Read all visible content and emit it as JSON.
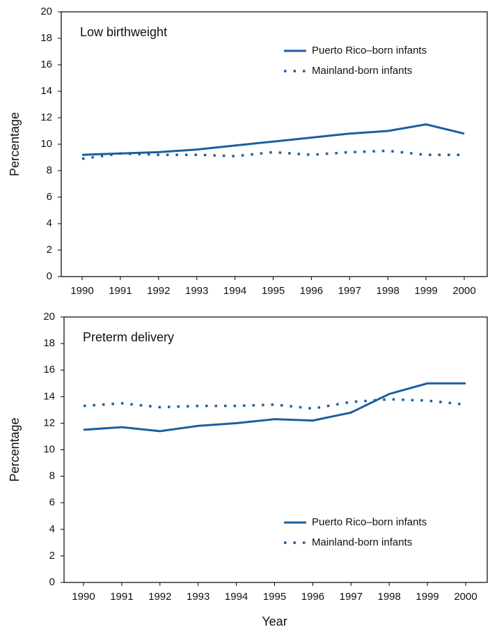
{
  "chart_data": [
    {
      "type": "line",
      "title": "Low birthweight",
      "y_label": "Percentage",
      "categories": [
        "1990",
        "1991",
        "1992",
        "1993",
        "1994",
        "1995",
        "1996",
        "1997",
        "1998",
        "1999",
        "2000"
      ],
      "series": [
        {
          "name": "Puerto Rico–born infants",
          "color": "#1a5fa0",
          "line_style": "solid",
          "values": [
            9.2,
            9.3,
            9.4,
            9.6,
            9.9,
            10.2,
            10.5,
            10.8,
            11.0,
            11.5,
            10.8
          ]
        },
        {
          "name": "Mainland-born infants",
          "color": "#1a5fa0",
          "line_style": "dotted",
          "values": [
            8.9,
            9.3,
            9.2,
            9.2,
            9.1,
            9.4,
            9.2,
            9.4,
            9.5,
            9.2,
            9.2
          ]
        }
      ],
      "ylim": [
        0,
        20
      ],
      "yticks": [
        0,
        2,
        4,
        6,
        8,
        10,
        12,
        14,
        16,
        18,
        20
      ],
      "legend": "upper right"
    },
    {
      "type": "line",
      "title": "Preterm delivery",
      "y_label": "Percentage",
      "x_label": "Year",
      "categories": [
        "1990",
        "1991",
        "1992",
        "1993",
        "1994",
        "1995",
        "1996",
        "1997",
        "1998",
        "1999",
        "2000"
      ],
      "series": [
        {
          "name": "Puerto Rico–born infants",
          "color": "#1a5fa0",
          "line_style": "solid",
          "values": [
            11.5,
            11.7,
            11.4,
            11.8,
            12.0,
            12.3,
            12.2,
            12.8,
            14.2,
            15.0,
            15.0
          ]
        },
        {
          "name": "Mainland-born infants",
          "color": "#1a5fa0",
          "line_style": "dotted",
          "values": [
            13.3,
            13.5,
            13.2,
            13.3,
            13.3,
            13.4,
            13.1,
            13.6,
            13.8,
            13.7,
            13.4
          ]
        }
      ],
      "ylim": [
        0,
        20
      ],
      "yticks": [
        0,
        2,
        4,
        6,
        8,
        10,
        12,
        14,
        16,
        18,
        20
      ],
      "legend": "lower right"
    }
  ]
}
